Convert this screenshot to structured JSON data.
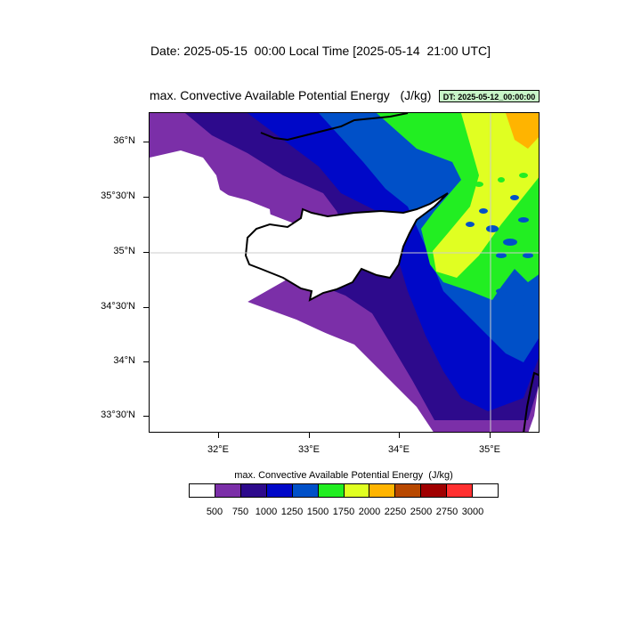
{
  "header": {
    "title": "Date: 2025-05-15  00:00 Local Time [2025-05-14  21:00 UTC]"
  },
  "plot": {
    "title": "max. Convective Available Potential Energy   (J/kg)",
    "badge": "DT: 2025-05-12_00:00:00",
    "badge_color": "#c8f5c8"
  },
  "axes": {
    "y_labels": [
      "36°N",
      "35°30'N",
      "35°N",
      "34°30'N",
      "34°N",
      "33°30'N"
    ],
    "x_labels": [
      "32°E",
      "33°E",
      "34°E",
      "35°E"
    ]
  },
  "colorbar": {
    "title": "max. Convective Available Potential Energy  (J/kg)",
    "levels": [
      "500",
      "750",
      "1000",
      "1250",
      "1500",
      "1750",
      "2000",
      "2250",
      "2500",
      "2750",
      "3000"
    ],
    "colors": [
      "#ffffff",
      "#7b2fa8",
      "#2d0a8c",
      "#0008c8",
      "#0050c8",
      "#22ee22",
      "#e0ff22",
      "#ffb400",
      "#b84800",
      "#a00000",
      "#ff3030",
      "#ffffff"
    ]
  }
}
